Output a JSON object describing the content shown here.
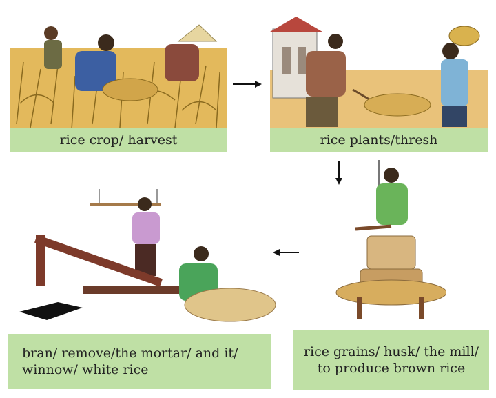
{
  "steps": [
    {
      "caption": "rice crop/ harvest"
    },
    {
      "caption": "rice plants/thresh"
    },
    {
      "caption_lines": [
        "rice grains/ husk/ the mill/",
        "to produce brown rice"
      ]
    },
    {
      "caption_lines": [
        "bran/ remove/the mortar/ and it/",
        "winnow/ white rice"
      ]
    }
  ],
  "colors": {
    "caption_bg": "#bfe0a5",
    "field": "#e3b95c",
    "arrow": "#111111"
  },
  "icons": [
    "harvest-scene",
    "threshing-scene",
    "mill-scene",
    "mortar-winnow-scene",
    "arrow-right-icon",
    "arrow-down-icon",
    "arrow-left-icon"
  ]
}
